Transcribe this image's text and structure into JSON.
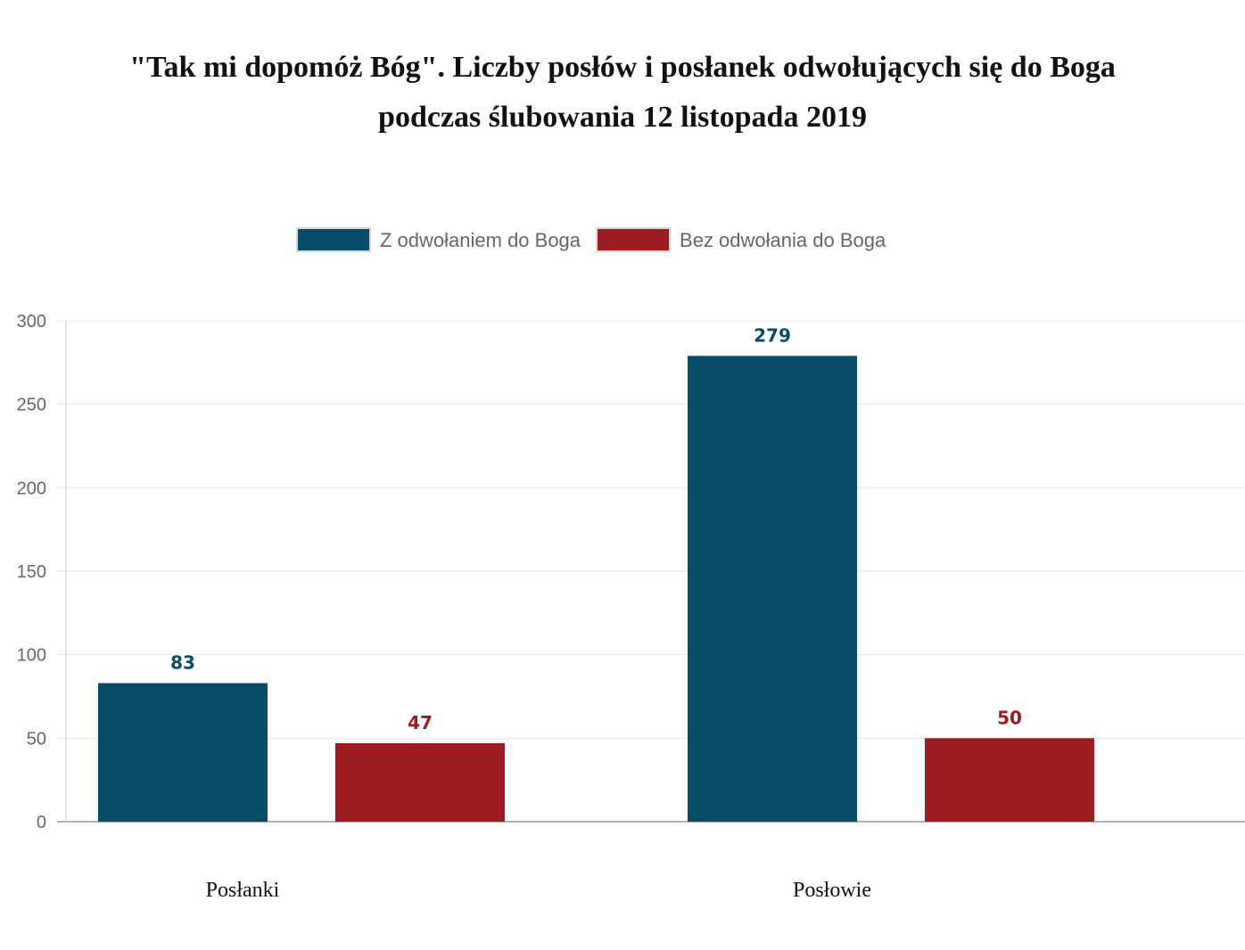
{
  "chart_data": {
    "type": "bar",
    "title_line1": "\"Tak mi dopomóż Bóg\". Liczby posłów i posłanek odwołujących się do Boga",
    "title_line2": "podczas ślubowania 12 listopada 2019",
    "categories": [
      "Posłanki",
      "Posłowie"
    ],
    "series": [
      {
        "name": "Z odwołaniem do Boga",
        "color": "#054d69",
        "values": [
          83,
          279
        ]
      },
      {
        "name": "Bez odwołania do Boga",
        "color": "#9d1c20",
        "values": [
          47,
          50
        ]
      }
    ],
    "ylim": [
      0,
      300
    ],
    "yticks": [
      0,
      50,
      100,
      150,
      200,
      250,
      300
    ],
    "grid": true,
    "legend_position": "top-center",
    "xlabel": "",
    "ylabel": ""
  }
}
